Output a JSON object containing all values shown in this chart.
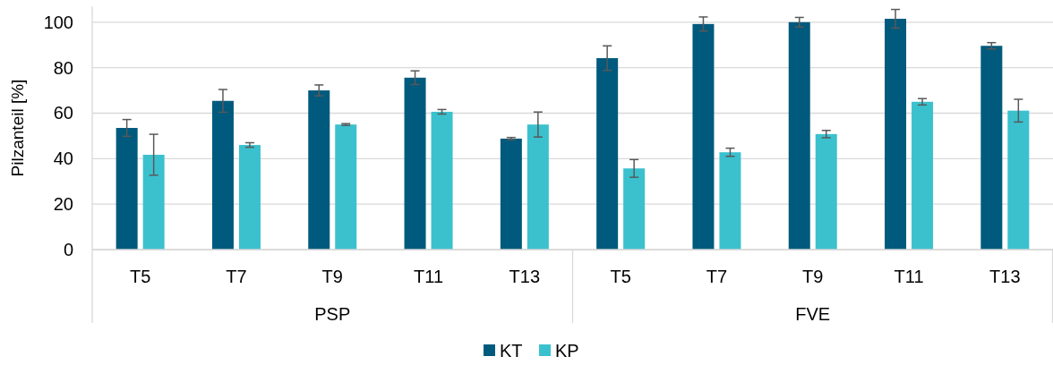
{
  "chart_data": {
    "type": "bar",
    "ylabel": "Pilzanteil [%]",
    "categories": [
      "T5",
      "T7",
      "T9",
      "T11",
      "T13",
      "T5",
      "T7",
      "T9",
      "T11",
      "T13"
    ],
    "series": [
      {
        "name": "KT",
        "color": "#005a7d",
        "values": [
          53.5,
          65.4,
          70,
          75.6,
          48.8,
          84.2,
          99.2,
          100,
          101.5,
          89.6
        ],
        "errors": [
          3.7,
          5,
          2.4,
          3,
          0.5,
          5.4,
          3.1,
          2.1,
          4.1,
          1.4
        ]
      },
      {
        "name": "KP",
        "color": "#3bc1ce",
        "values": [
          41.7,
          46,
          55,
          60.6,
          55,
          35.7,
          42.8,
          50.8,
          65,
          61.1
        ],
        "errors": [
          9,
          1,
          0.4,
          1,
          5.5,
          3.9,
          1.8,
          1.6,
          1.4,
          5
        ]
      }
    ],
    "annotations": [
      "PSP",
      "FVE"
    ],
    "ylim": [
      0,
      107
    ],
    "yticks": [
      0,
      20,
      40,
      60,
      80,
      100
    ],
    "grid": "y",
    "legend": "bottom"
  }
}
